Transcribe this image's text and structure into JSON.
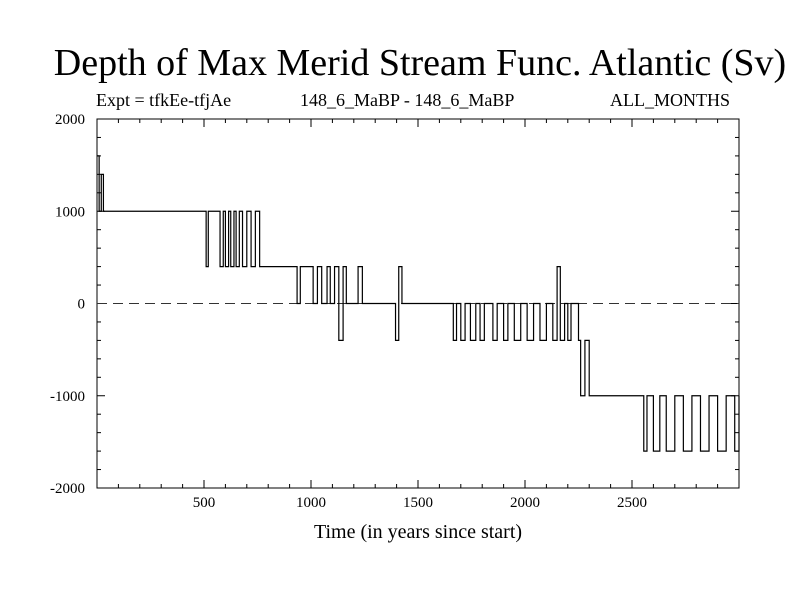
{
  "chart_data": {
    "type": "line",
    "title": "Depth of Max Merid Stream Func. Atlantic (Sv)",
    "subtitle_left": "Expt = tfkEe-tfjAe",
    "subtitle_center": "148_6_MaBP - 148_6_MaBP",
    "subtitle_right": "ALL_MONTHS",
    "xlabel": "Time (in years since start)",
    "ylabel": "",
    "xlim": [
      0,
      3000
    ],
    "ylim": [
      -2000,
      2000
    ],
    "x_ticks": [
      500,
      1000,
      1500,
      2000,
      2500
    ],
    "y_ticks": [
      2000,
      1000,
      0,
      -1000,
      -2000
    ],
    "zero_line": "dashed",
    "grid": false,
    "series": [
      {
        "x": [
          0,
          10,
          20,
          30,
          500,
          510,
          520,
          560,
          575,
          590,
          600,
          615,
          625,
          640,
          650,
          665,
          680,
          700,
          720,
          740,
          760,
          920,
          935,
          950,
          990,
          1010,
          1030,
          1050,
          1075,
          1090,
          1110,
          1130,
          1150,
          1165,
          1200,
          1220,
          1240,
          1380,
          1395,
          1410,
          1425,
          1650,
          1665,
          1680,
          1700,
          1720,
          1745,
          1770,
          1790,
          1810,
          1850,
          1870,
          1900,
          1920,
          1950,
          1980,
          2010,
          2040,
          2070,
          2100,
          2130,
          2150,
          2165,
          2185,
          2200,
          2215,
          2250,
          2260,
          2280,
          2300,
          2330,
          2540,
          2555,
          2570,
          2600,
          2630,
          2660,
          2700,
          2740,
          2780,
          2820,
          2860,
          2900,
          2940,
          2980,
          3000
        ],
        "values": [
          1600,
          1000,
          1400,
          1000,
          1000,
          400,
          1000,
          1000,
          400,
          1000,
          400,
          1000,
          400,
          1000,
          400,
          1000,
          400,
          1000,
          400,
          1000,
          400,
          400,
          0,
          400,
          400,
          0,
          400,
          0,
          400,
          0,
          400,
          -400,
          400,
          0,
          0,
          400,
          0,
          0,
          -400,
          400,
          0,
          0,
          -400,
          0,
          -400,
          0,
          -400,
          0,
          -400,
          0,
          -400,
          0,
          -400,
          0,
          -400,
          0,
          -400,
          0,
          -400,
          0,
          -400,
          400,
          -400,
          0,
          -400,
          0,
          -400,
          -1000,
          -400,
          -1000,
          -1000,
          -1000,
          -1600,
          -1000,
          -1600,
          -1000,
          -1600,
          -1000,
          -1600,
          -1000,
          -1600,
          -1000,
          -1600,
          -1000,
          -1600,
          -1000
        ]
      }
    ]
  }
}
